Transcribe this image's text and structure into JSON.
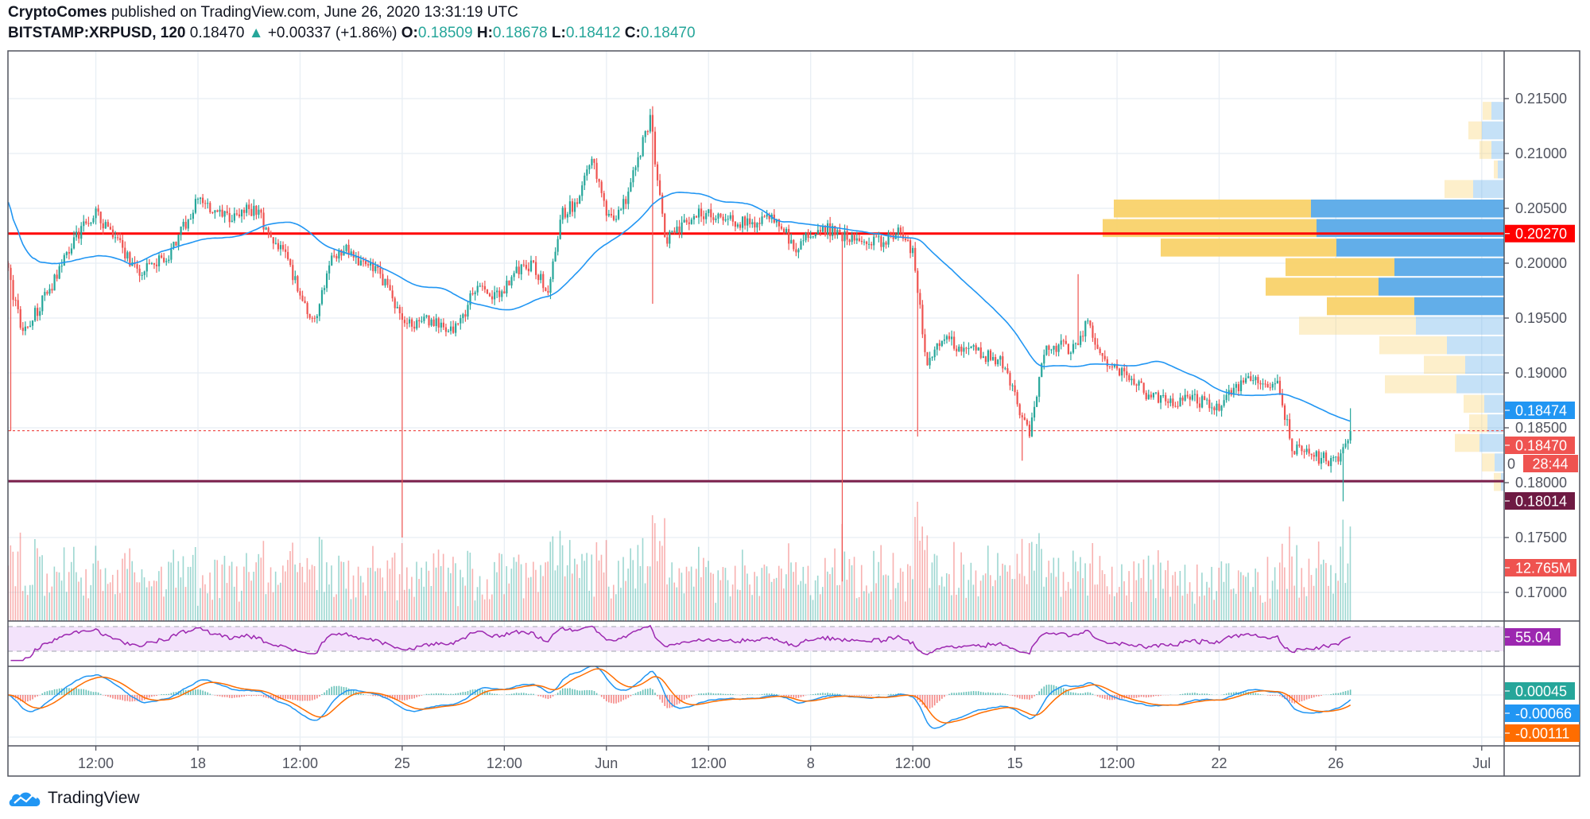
{
  "header": {
    "author": "CryptoComes",
    "published": " published on TradingView.com, June 26, 2020 13:31:19 UTC",
    "symbol": "BITSTAMP:XRPUSD, 120",
    "last": "0.18470",
    "change": "+0.00337 (+1.86%)",
    "o_label": "O:",
    "o": "0.18509",
    "h_label": "H:",
    "h": "0.18678",
    "l_label": "L:",
    "l": "0.18412",
    "c_label": "C:",
    "c": "0.18470",
    "up_icon": "triangle-up-icon"
  },
  "footer": {
    "brand": "TradingView",
    "icon": "tradingview-cloud-icon"
  },
  "colors": {
    "up": "#26a69a",
    "down": "#ef5350",
    "ma": "#2196f3",
    "resistance": "#ff0000",
    "support": "#7b1f4b",
    "rsi": "#9c27b0",
    "macd": "#2196f3",
    "signal": "#ff6d00",
    "vp_up": "#5aaae8",
    "vp_down": "#f9d26a"
  },
  "chart_data": {
    "type": "candlestick",
    "interval": "120",
    "price_axis": {
      "ticks": [
        "0.21500",
        "0.21000",
        "0.20500",
        "0.20000",
        "0.19500",
        "0.19000",
        "0.18500",
        "0.18000",
        "0.17500",
        "0.17000"
      ],
      "ylim": [
        0.1665,
        0.2185
      ]
    },
    "time_axis": {
      "ticks": [
        {
          "label": "12:00",
          "time": "2020-05-14 12:00"
        },
        {
          "label": "18",
          "time": "2020-05-18 00:00"
        },
        {
          "label": "12:00",
          "time": "2020-05-21 12:00"
        },
        {
          "label": "25",
          "time": "2020-05-25 00:00"
        },
        {
          "label": "12:00",
          "time": "2020-05-28 12:00"
        },
        {
          "label": "Jun",
          "time": "2020-06-01 00:00"
        },
        {
          "label": "12:00",
          "time": "2020-06-04 12:00"
        },
        {
          "label": "8",
          "time": "2020-06-08 00:00"
        },
        {
          "label": "12:00",
          "time": "2020-06-11 12:00"
        },
        {
          "label": "15",
          "time": "2020-06-15 00:00"
        },
        {
          "label": "12:00",
          "time": "2020-06-18 12:00"
        },
        {
          "label": "22",
          "time": "2020-06-22 00:00"
        },
        {
          "label": "26",
          "time": "2020-06-26 00:00"
        },
        {
          "label": "Jul",
          "time": "2020-07-01 00:00"
        }
      ]
    },
    "grid": true,
    "close_samples": {
      "x": [
        "2020-05-11 12:00",
        "2020-05-12 00:00",
        "2020-05-12 12:00",
        "2020-05-13 00:00",
        "2020-05-13 12:00",
        "2020-05-14 00:00",
        "2020-05-14 12:00",
        "2020-05-15 00:00",
        "2020-05-15 12:00",
        "2020-05-16 00:00",
        "2020-05-16 12:00",
        "2020-05-17 00:00",
        "2020-05-17 12:00",
        "2020-05-18 00:00",
        "2020-05-18 12:00",
        "2020-05-19 00:00",
        "2020-05-19 12:00",
        "2020-05-20 00:00",
        "2020-05-20 12:00",
        "2020-05-21 00:00",
        "2020-05-21 12:00",
        "2020-05-22 00:00",
        "2020-05-22 12:00",
        "2020-05-23 00:00",
        "2020-05-23 12:00",
        "2020-05-24 00:00",
        "2020-05-24 12:00",
        "2020-05-25 00:00",
        "2020-05-25 12:00",
        "2020-05-26 00:00",
        "2020-05-26 12:00",
        "2020-05-27 00:00",
        "2020-05-27 12:00",
        "2020-05-28 00:00",
        "2020-05-28 12:00",
        "2020-05-29 00:00",
        "2020-05-29 12:00",
        "2020-05-30 00:00",
        "2020-05-30 12:00",
        "2020-05-31 00:00",
        "2020-05-31 12:00",
        "2020-06-01 00:00",
        "2020-06-01 12:00",
        "2020-06-02 00:00",
        "2020-06-02 12:00",
        "2020-06-03 00:00",
        "2020-06-03 12:00",
        "2020-06-04 00:00",
        "2020-06-04 12:00",
        "2020-06-05 00:00",
        "2020-06-05 12:00",
        "2020-06-06 00:00",
        "2020-06-06 12:00",
        "2020-06-07 00:00",
        "2020-06-07 12:00",
        "2020-06-08 00:00",
        "2020-06-08 12:00",
        "2020-06-09 00:00",
        "2020-06-09 12:00",
        "2020-06-10 00:00",
        "2020-06-10 12:00",
        "2020-06-11 00:00",
        "2020-06-11 12:00",
        "2020-06-12 00:00",
        "2020-06-12 12:00",
        "2020-06-13 00:00",
        "2020-06-13 12:00",
        "2020-06-14 00:00",
        "2020-06-14 12:00",
        "2020-06-15 00:00",
        "2020-06-15 12:00",
        "2020-06-16 00:00",
        "2020-06-16 12:00",
        "2020-06-17 00:00",
        "2020-06-17 12:00",
        "2020-06-18 00:00",
        "2020-06-18 12:00",
        "2020-06-19 00:00",
        "2020-06-19 12:00",
        "2020-06-20 00:00",
        "2020-06-20 12:00",
        "2020-06-21 00:00",
        "2020-06-21 12:00",
        "2020-06-22 00:00",
        "2020-06-22 12:00",
        "2020-06-23 00:00",
        "2020-06-23 12:00",
        "2020-06-24 00:00",
        "2020-06-24 12:00",
        "2020-06-25 00:00",
        "2020-06-25 12:00",
        "2020-06-26 00:00",
        "2020-06-26 12:00"
      ],
      "close": [
        0.199,
        0.1935,
        0.1958,
        0.198,
        0.2009,
        0.2032,
        0.2046,
        0.2029,
        0.2009,
        0.1992,
        0.1998,
        0.2009,
        0.2032,
        0.206,
        0.2046,
        0.2041,
        0.2046,
        0.205,
        0.2023,
        0.2007,
        0.1972,
        0.1944,
        0.2001,
        0.2013,
        0.2001,
        0.1995,
        0.1981,
        0.1944,
        0.1944,
        0.1949,
        0.1937,
        0.1946,
        0.1979,
        0.197,
        0.1976,
        0.1995,
        0.1998,
        0.1972,
        0.2046,
        0.2055,
        0.2101,
        0.2041,
        0.2046,
        0.2087,
        0.2133,
        0.2022,
        0.2032,
        0.2044,
        0.2046,
        0.2041,
        0.2038,
        0.2036,
        0.2041,
        0.2034,
        0.2013,
        0.2029,
        0.2032,
        0.2027,
        0.202,
        0.2018,
        0.202,
        0.2029,
        0.2009,
        0.1907,
        0.1935,
        0.1925,
        0.1921,
        0.1916,
        0.1912,
        0.1879,
        0.1842,
        0.1921,
        0.1925,
        0.1921,
        0.1946,
        0.1912,
        0.1905,
        0.1896,
        0.1881,
        0.1877,
        0.1872,
        0.1879,
        0.1872,
        0.187,
        0.1884,
        0.1893,
        0.1891,
        0.1893,
        0.1833,
        0.1826,
        0.1822,
        0.1819,
        0.1847
      ]
    },
    "notable_wicks": [
      {
        "time": "2020-05-11 14:00",
        "low": 0.1847
      },
      {
        "time": "2020-05-25 00:00",
        "low": 0.175
      },
      {
        "time": "2020-06-02 14:00",
        "low": 0.1963,
        "high": 0.2143
      },
      {
        "time": "2020-06-09 02:00",
        "low": 0.171
      },
      {
        "time": "2020-06-11 16:00",
        "low": 0.1842
      },
      {
        "time": "2020-06-15 06:00",
        "low": 0.182
      },
      {
        "time": "2020-06-17 04:00",
        "high": 0.199
      },
      {
        "time": "2020-06-26 06:00",
        "low": 0.1783
      },
      {
        "time": "2020-06-26 12:00",
        "high": 0.18678
      }
    ],
    "moving_average": {
      "type": "SMA",
      "length": 50
    },
    "horizontal_lines": [
      {
        "price": 0.2027,
        "label": "0.20270",
        "role": "resistance"
      },
      {
        "price": 0.18014,
        "label": "0.18014",
        "role": "support"
      },
      {
        "price": 0.18474,
        "label": "0.18474",
        "role": "current",
        "style": "dotted"
      }
    ],
    "axis_labels": {
      "ma": "0.18474",
      "last_price": "0.18470",
      "countdown": "28:44",
      "partial_tick": "0",
      "volume": "12.765M",
      "rsi": "55.04",
      "macd_hist": "0.00045",
      "macd": "-0.00066",
      "macd_signal": "-0.00111"
    },
    "volume_profile": {
      "top_price": 0.2147,
      "bin_size": 0.00178,
      "rows": [
        {
          "up": 16,
          "down": 11
        },
        {
          "up": 28,
          "down": 17
        },
        {
          "up": 16,
          "down": 15
        },
        {
          "up": 8,
          "down": 5
        },
        {
          "up": 39,
          "down": 36
        },
        {
          "up": 243,
          "down": 248,
          "value_area": true
        },
        {
          "up": 236,
          "down": 269,
          "value_area": true
        },
        {
          "up": 211,
          "down": 221,
          "value_area": true
        },
        {
          "up": 138,
          "down": 137,
          "value_area": true
        },
        {
          "up": 158,
          "down": 142,
          "value_area": true
        },
        {
          "up": 113,
          "down": 110,
          "value_area": true
        },
        {
          "up": 111,
          "down": 147
        },
        {
          "up": 72,
          "down": 85
        },
        {
          "up": 49,
          "down": 52
        },
        {
          "up": 60,
          "down": 90
        },
        {
          "up": 25,
          "down": 26
        },
        {
          "up": 21,
          "down": 23
        },
        {
          "up": 31,
          "down": 31
        },
        {
          "up": 12,
          "down": 16
        },
        {
          "up": 4,
          "down": 9
        }
      ]
    },
    "rsi": {
      "length": 14,
      "upper": 70,
      "lower": 30,
      "last": 55.04
    },
    "macd": {
      "fast": 12,
      "slow": 26,
      "signal": 9
    }
  }
}
